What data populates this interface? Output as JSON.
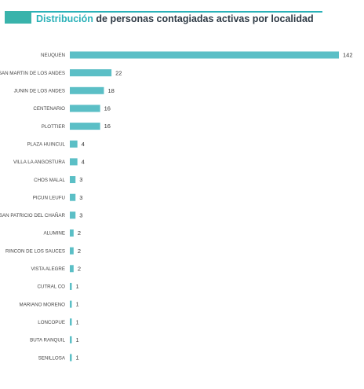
{
  "header": {
    "title_accent": "Distribución",
    "title_rest": " de personas contagiadas activas por localidad",
    "block_color": "#39b3ab",
    "rule_color": "#2ab1b8"
  },
  "chart_data": {
    "type": "bar",
    "orientation": "horizontal",
    "title": "Distribución de personas contagiadas activas por localidad",
    "xlabel": "",
    "ylabel": "",
    "bar_color": "#5bbfc6",
    "categories": [
      "NEUQUEN",
      "SAN MARTIN DE LOS ANDES",
      "JUNIN DE LOS ANDES",
      "CENTENARIO",
      "PLOTTIER",
      "PLAZA HUINCUL",
      "VILLA LA ANGOSTURA",
      "CHOS MALAL",
      "PICUN LEUFU",
      "SAN PATRICIO DEL CHAÑAR",
      "ALUMINE",
      "RINCON DE LOS SAUCES",
      "VISTA ALEGRE",
      "CUTRAL CO",
      "MARIANO MORENO",
      "LONCOPUE",
      "BUTA RANQUIL",
      "SENILLOSA"
    ],
    "values": [
      142,
      22,
      18,
      16,
      16,
      4,
      4,
      3,
      3,
      3,
      2,
      2,
      2,
      1,
      1,
      1,
      1,
      1
    ],
    "xlim": [
      0,
      142
    ],
    "grid": false,
    "data_labels": true
  }
}
